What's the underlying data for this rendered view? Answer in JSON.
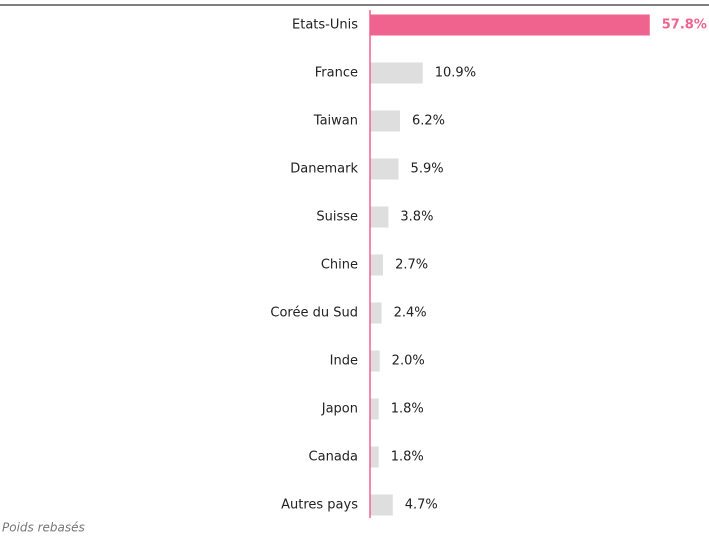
{
  "chart_data": {
    "type": "hbar",
    "categories": [
      "Etats-Unis",
      "France",
      "Taiwan",
      "Danemark",
      "Suisse",
      "Chine",
      "Corée du Sud",
      "Inde",
      "Japon",
      "Canada",
      "Autres pays"
    ],
    "values": [
      57.8,
      10.9,
      6.2,
      5.9,
      3.8,
      2.7,
      2.4,
      2.0,
      1.8,
      1.8,
      4.7
    ],
    "value_labels": [
      "57.8%",
      "10.9%",
      "6.2%",
      "5.9%",
      "3.8%",
      "2.7%",
      "2.4%",
      "2.0%",
      "1.8%",
      "1.8%",
      "4.7%"
    ],
    "colors": [
      "#f0638f",
      "#dedede",
      "#dedede",
      "#dedede",
      "#dedede",
      "#dedede",
      "#dedede",
      "#dedede",
      "#dedede",
      "#dedede",
      "#dedede"
    ],
    "axis_color": "#f0638f",
    "footnote": "Poids rebasés"
  }
}
